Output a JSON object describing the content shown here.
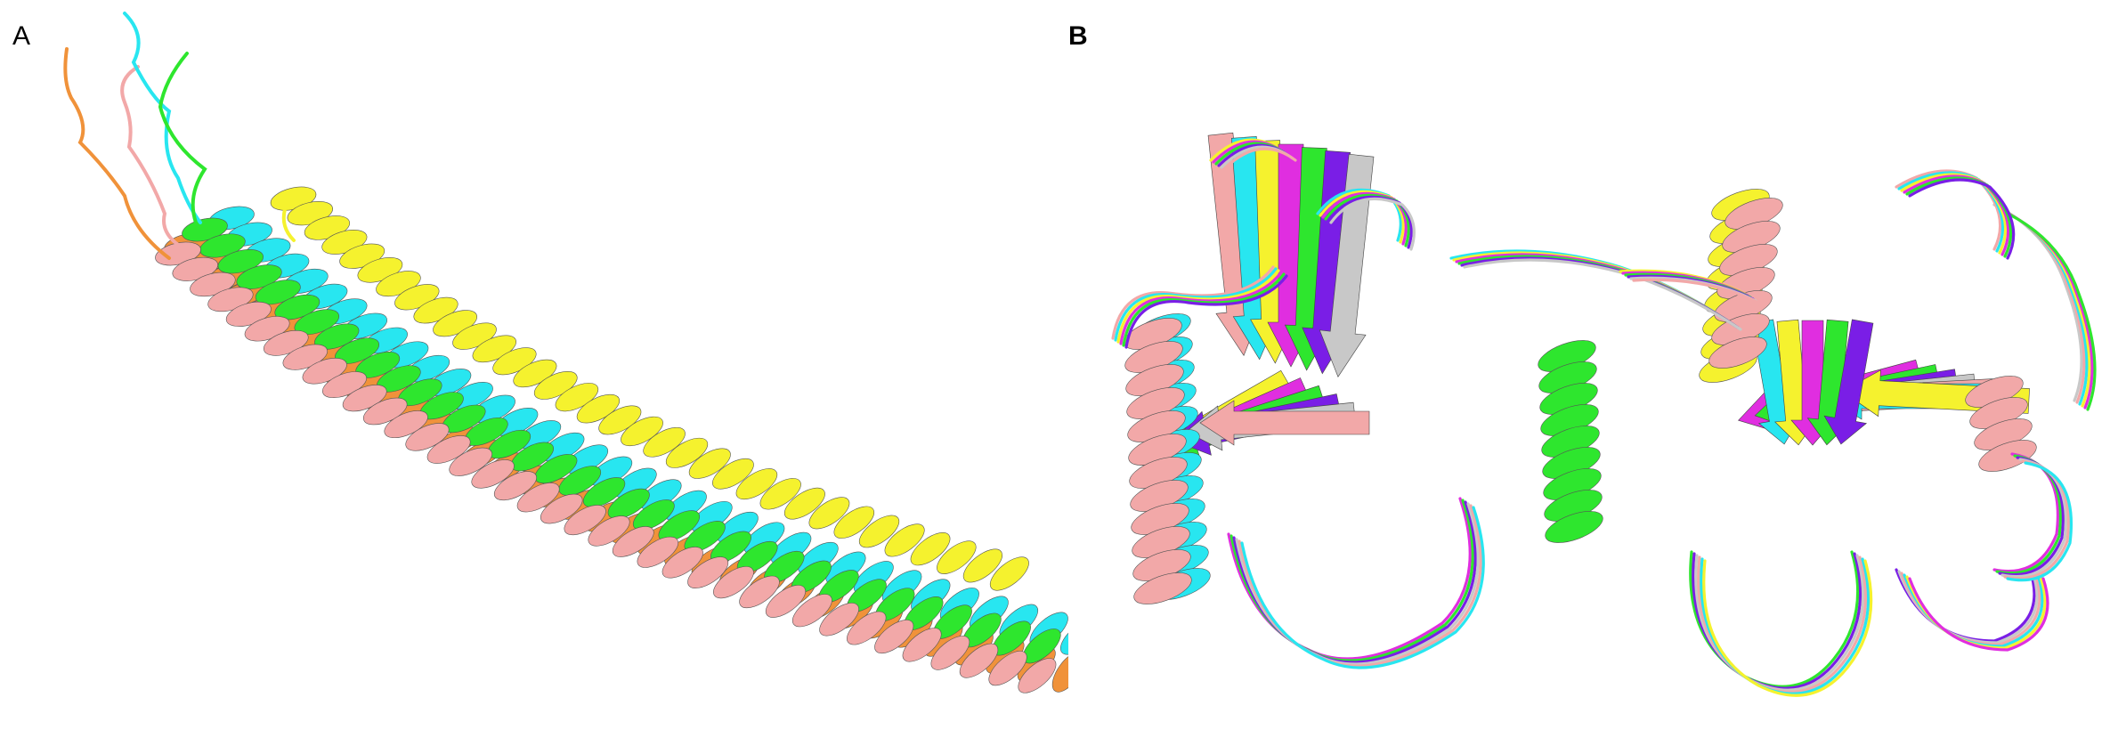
{
  "panels": {
    "a": {
      "label": "A"
    },
    "b": {
      "label": "B"
    }
  },
  "colors": {
    "orange": "#f0923a",
    "cyan": "#28e6f0",
    "pink": "#f2a8a8",
    "green": "#2ee62e",
    "yellow": "#f5f22e",
    "magenta": "#e02ee0",
    "purple": "#7a1ee6",
    "grey": "#c8c8c8"
  }
}
